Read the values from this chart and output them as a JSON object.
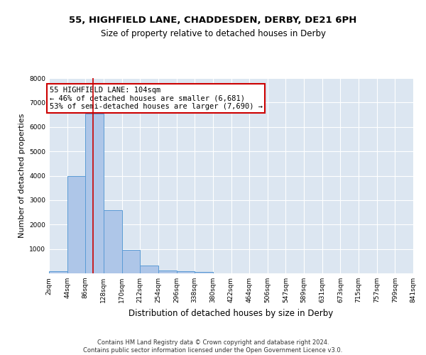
{
  "title_line1": "55, HIGHFIELD LANE, CHADDESDEN, DERBY, DE21 6PH",
  "title_line2": "Size of property relative to detached houses in Derby",
  "xlabel": "Distribution of detached houses by size in Derby",
  "ylabel": "Number of detached properties",
  "bar_values": [
    75,
    3975,
    6550,
    2600,
    960,
    310,
    130,
    95,
    50,
    0,
    0,
    0,
    0,
    0,
    0,
    0,
    0,
    0,
    0,
    0
  ],
  "bin_edges": [
    2,
    44,
    86,
    128,
    170,
    212,
    254,
    296,
    338,
    380,
    422,
    464,
    506,
    548,
    590,
    632,
    674,
    716,
    758,
    800,
    842
  ],
  "tick_labels": [
    "2sqm",
    "44sqm",
    "86sqm",
    "128sqm",
    "170sqm",
    "212sqm",
    "254sqm",
    "296sqm",
    "338sqm",
    "380sqm",
    "422sqm",
    "464sqm",
    "506sqm",
    "547sqm",
    "589sqm",
    "631sqm",
    "673sqm",
    "715sqm",
    "757sqm",
    "799sqm",
    "841sqm"
  ],
  "bar_color": "#aec6e8",
  "bar_edge_color": "#5b9bd5",
  "vline_x": 104,
  "vline_color": "#cc0000",
  "annotation_text": "55 HIGHFIELD LANE: 104sqm\n← 46% of detached houses are smaller (6,681)\n53% of semi-detached houses are larger (7,690) →",
  "annotation_box_color": "white",
  "annotation_box_edge": "#cc0000",
  "ylim": [
    0,
    8000
  ],
  "yticks": [
    0,
    1000,
    2000,
    3000,
    4000,
    5000,
    6000,
    7000,
    8000
  ],
  "background_color": "#dce6f1",
  "grid_color": "white",
  "footer_text": "Contains HM Land Registry data © Crown copyright and database right 2024.\nContains public sector information licensed under the Open Government Licence v3.0.",
  "title_fontsize": 9.5,
  "subtitle_fontsize": 8.5,
  "ylabel_fontsize": 8,
  "xlabel_fontsize": 8.5,
  "tick_fontsize": 6.5,
  "annotation_fontsize": 7.5,
  "footer_fontsize": 6
}
